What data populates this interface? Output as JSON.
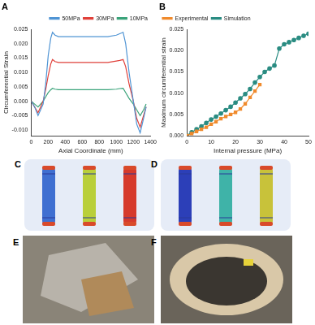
{
  "chart_data": [
    {
      "type": "line",
      "title": "A",
      "x_label": "Axial Coordinate (mm)",
      "y_label": "Circumferential Strain",
      "xlim": [
        0,
        1400
      ],
      "xticks": [
        0,
        200,
        400,
        600,
        800,
        1000,
        1200,
        1400
      ],
      "ylim": [
        -0.012,
        0.025
      ],
      "yticks": [
        {
          "value": -0.01,
          "label": "-0.010"
        },
        -0.005,
        {
          "value": 0,
          "label": "0.000"
        },
        0.005,
        {
          "value": 0.01,
          "label": "0.010"
        },
        0.015,
        {
          "value": 0.02,
          "label": "0.020"
        },
        0.025
      ],
      "grid": false,
      "legend": "upper right",
      "series": [
        {
          "name": "50MPa",
          "color": "#4f94d4",
          "line_style": "solid",
          "x": [
            0,
            40,
            80,
            110,
            140,
            170,
            200,
            230,
            250,
            280,
            320,
            400,
            500,
            600,
            700,
            800,
            900,
            1000,
            1040,
            1080,
            1110,
            1150,
            1200,
            1240,
            1280,
            1320,
            1350
          ],
          "values": [
            0.0,
            -0.002,
            -0.005,
            -0.003,
            -0.001,
            0.006,
            0.016,
            0.022,
            0.024,
            0.023,
            0.0225,
            0.0225,
            0.0225,
            0.0225,
            0.0225,
            0.0225,
            0.0225,
            0.023,
            0.0235,
            0.024,
            0.02,
            0.01,
            0.0,
            -0.008,
            -0.011,
            -0.006,
            -0.002
          ]
        },
        {
          "name": "30MPa",
          "color": "#e0403a",
          "line_style": "solid",
          "x": [
            0,
            40,
            80,
            110,
            140,
            170,
            200,
            230,
            250,
            280,
            320,
            400,
            500,
            600,
            700,
            800,
            900,
            1000,
            1040,
            1080,
            1110,
            1150,
            1200,
            1240,
            1280,
            1320,
            1350
          ],
          "values": [
            0.0,
            -0.002,
            -0.004,
            -0.002,
            0.0,
            0.004,
            0.009,
            0.013,
            0.0145,
            0.0138,
            0.0135,
            0.0135,
            0.0135,
            0.0135,
            0.0135,
            0.0135,
            0.0135,
            0.014,
            0.0142,
            0.0145,
            0.012,
            0.006,
            0.0,
            -0.006,
            -0.009,
            -0.005,
            -0.002
          ]
        },
        {
          "name": "10MPa",
          "color": "#3aa37a",
          "line_style": "solid",
          "x": [
            0,
            40,
            80,
            110,
            140,
            170,
            200,
            230,
            250,
            280,
            320,
            400,
            500,
            600,
            700,
            800,
            900,
            1000,
            1040,
            1080,
            1110,
            1150,
            1200,
            1240,
            1280,
            1320,
            1350
          ],
          "values": [
            0.0,
            -0.001,
            -0.002,
            -0.001,
            0.0,
            0.0015,
            0.003,
            0.004,
            0.0045,
            0.0042,
            0.004,
            0.004,
            0.004,
            0.004,
            0.004,
            0.004,
            0.004,
            0.0042,
            0.0044,
            0.0045,
            0.003,
            0.001,
            -0.001,
            -0.003,
            -0.005,
            -0.003,
            -0.001
          ]
        }
      ]
    },
    {
      "type": "line",
      "title": "B",
      "x_label": "Internal pressure (MPa)",
      "y_label": "Maximum circumferential strain",
      "xlim": [
        0,
        50
      ],
      "xticks": [
        0,
        10,
        20,
        30,
        40,
        50
      ],
      "ylim": [
        0,
        0.025
      ],
      "yticks": [
        {
          "value": 0,
          "label": "0.000"
        },
        0.005,
        {
          "value": 0.01,
          "label": "0.010"
        },
        0.015,
        {
          "value": 0.02,
          "label": "0.020"
        },
        0.025
      ],
      "grid": false,
      "legend": "upper left",
      "series": [
        {
          "name": "Experimental",
          "color": "#f08a2c",
          "marker": "square",
          "line_style": "solid",
          "x": [
            0,
            2,
            4,
            6,
            8,
            10,
            12,
            14,
            16,
            18,
            20,
            22,
            24,
            26,
            28,
            30
          ],
          "values": [
            0.0,
            0.0005,
            0.001,
            0.0015,
            0.002,
            0.0027,
            0.0033,
            0.004,
            0.0045,
            0.005,
            0.0055,
            0.0063,
            0.0075,
            0.009,
            0.0105,
            0.012
          ]
        },
        {
          "name": "Simulation",
          "color": "#2a8c82",
          "marker": "circle",
          "line_style": "solid",
          "x": [
            0,
            2,
            4,
            6,
            8,
            10,
            12,
            14,
            16,
            18,
            20,
            22,
            24,
            26,
            28,
            30,
            32,
            34,
            36,
            38,
            40,
            42,
            44,
            46,
            48,
            50
          ],
          "values": [
            0.0,
            0.0008,
            0.0015,
            0.0022,
            0.003,
            0.0038,
            0.0045,
            0.0052,
            0.006,
            0.0068,
            0.0078,
            0.0088,
            0.0098,
            0.011,
            0.0125,
            0.0138,
            0.015,
            0.0158,
            0.0165,
            0.0205,
            0.0215,
            0.022,
            0.0225,
            0.023,
            0.0235,
            0.024
          ]
        }
      ]
    }
  ],
  "panels": [
    "C",
    "D",
    "E",
    "F"
  ]
}
